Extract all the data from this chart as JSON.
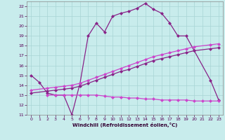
{
  "background_color": "#c8ecec",
  "grid_color": "#a8d4d4",
  "color_dark": "#882288",
  "color_light": "#cc44cc",
  "xlabel": "Windchill (Refroidissement éolien,°C)",
  "xlim": [
    -0.5,
    23.5
  ],
  "ylim": [
    11,
    22.5
  ],
  "yticks": [
    11,
    12,
    13,
    14,
    15,
    16,
    17,
    18,
    19,
    20,
    21,
    22
  ],
  "xticks": [
    0,
    1,
    2,
    3,
    4,
    5,
    6,
    7,
    8,
    9,
    10,
    11,
    12,
    13,
    14,
    15,
    16,
    17,
    18,
    19,
    20,
    21,
    22,
    23
  ],
  "curve_x": [
    0,
    1,
    2,
    3,
    4,
    5,
    6,
    7,
    8,
    9,
    10,
    11,
    12,
    13,
    14,
    15,
    16,
    17,
    18,
    19,
    20,
    22,
    23
  ],
  "curve_y": [
    15.0,
    14.3,
    13.2,
    13.0,
    13.0,
    11.0,
    14.2,
    19.0,
    20.3,
    19.4,
    21.0,
    21.3,
    21.5,
    21.8,
    22.3,
    21.7,
    21.3,
    20.3,
    19.0,
    19.0,
    17.5,
    14.5,
    12.5
  ],
  "diag1_x": [
    0,
    2,
    3,
    4,
    5,
    6,
    7,
    8,
    9,
    10,
    11,
    12,
    13,
    14,
    15,
    16,
    17,
    18,
    19,
    20,
    22,
    23
  ],
  "diag1_y": [
    13.5,
    13.7,
    13.8,
    13.9,
    14.0,
    14.2,
    14.5,
    14.8,
    15.1,
    15.4,
    15.7,
    16.0,
    16.3,
    16.6,
    16.9,
    17.1,
    17.3,
    17.5,
    17.7,
    17.9,
    18.1,
    18.2
  ],
  "diag2_x": [
    0,
    2,
    3,
    4,
    5,
    6,
    7,
    8,
    9,
    10,
    11,
    12,
    13,
    14,
    15,
    16,
    17,
    18,
    19,
    20,
    22,
    23
  ],
  "diag2_y": [
    13.2,
    13.4,
    13.5,
    13.6,
    13.7,
    13.9,
    14.2,
    14.5,
    14.8,
    15.1,
    15.4,
    15.6,
    15.9,
    16.2,
    16.5,
    16.7,
    16.9,
    17.1,
    17.3,
    17.5,
    17.7,
    17.8
  ],
  "flat_x": [
    2,
    3,
    4,
    5,
    6,
    7,
    8,
    9,
    10,
    11,
    12,
    13,
    14,
    15,
    16,
    17,
    18,
    19,
    20,
    21,
    22,
    23
  ],
  "flat_y": [
    13.0,
    13.0,
    13.0,
    13.0,
    13.0,
    13.0,
    13.0,
    12.9,
    12.8,
    12.8,
    12.7,
    12.7,
    12.6,
    12.6,
    12.5,
    12.5,
    12.5,
    12.5,
    12.4,
    12.4,
    12.4,
    12.4
  ]
}
